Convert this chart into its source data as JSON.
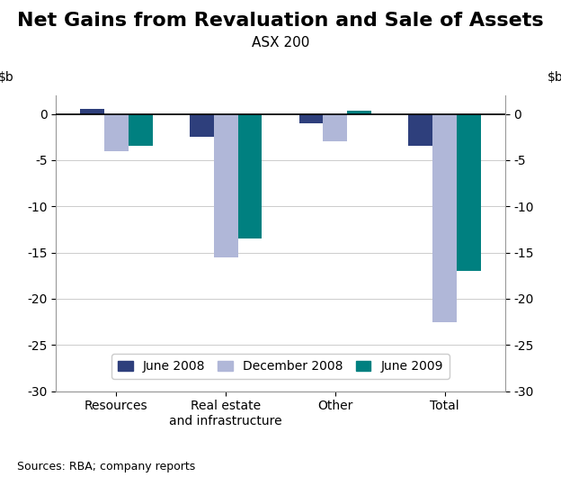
{
  "title": "Net Gains from Revaluation and Sale of Assets",
  "subtitle": "ASX 200",
  "source": "Sources: RBA; company reports",
  "categories": [
    "Resources",
    "Real estate\nand infrastructure",
    "Other",
    "Total"
  ],
  "series": {
    "June 2008": [
      0.5,
      -2.5,
      -1.0,
      -3.5
    ],
    "December 2008": [
      -4.0,
      -15.5,
      -3.0,
      -22.5
    ],
    "June 2009": [
      -3.5,
      -13.5,
      0.3,
      -17.0
    ]
  },
  "colors": {
    "June 2008": "#2e3f7c",
    "December 2008": "#b0b7d8",
    "June 2009": "#008080"
  },
  "ylim": [
    -30,
    2
  ],
  "yticks": [
    0,
    -5,
    -10,
    -15,
    -20,
    -25,
    -30
  ],
  "bar_width": 0.22,
  "background_color": "#ffffff",
  "grid_color": "#cccccc",
  "title_fontsize": 16,
  "subtitle_fontsize": 11,
  "axis_label_fontsize": 10,
  "tick_fontsize": 10,
  "legend_fontsize": 10,
  "source_fontsize": 9
}
